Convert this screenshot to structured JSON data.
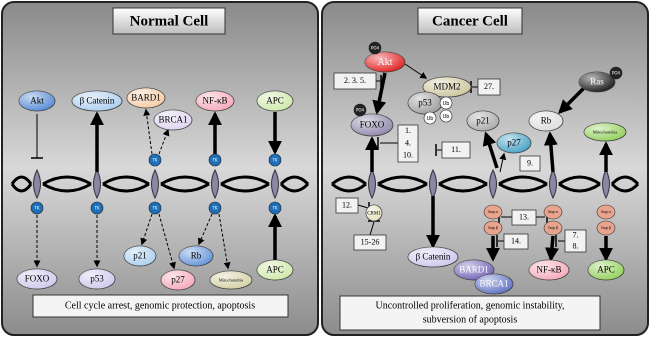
{
  "normal_cell": {
    "title": "Normal Cell",
    "nodes": {
      "akt": "Akt",
      "beta_catenin": "β Catenin",
      "bard1": "BARD1",
      "brca1": "BRCA1",
      "nfkb": "NF-κB",
      "apc_top": "APC",
      "foxo": "FOXO",
      "p53": "p53",
      "p21": "p21",
      "p27": "p27",
      "rb": "Rb",
      "mitochondria": "Mitochondria",
      "apc_bottom": "APC"
    },
    "tk": [
      "TK",
      "TK",
      "TK",
      "TK",
      "TK",
      "TK",
      "TK",
      "TK"
    ],
    "caption": "Cell cycle arrest, genomic protection, apoptosis"
  },
  "cancer_cell": {
    "title": "Cancer Cell",
    "nodes": {
      "akt": "Akt",
      "mdm2": "MDM2",
      "p53": "p53",
      "foxo": "FOXO",
      "p21": "p21",
      "p27": "p27",
      "rb": "Rb",
      "ras": "Ras",
      "mitochondria": "Mitochondria",
      "crm1": "CRM1",
      "beta_catenin": "β Catenin",
      "bard1": "BARD1",
      "brca1": "BRCA1",
      "nfkb": "NF-κB",
      "apc": "APC"
    },
    "phospho": [
      "PO4",
      "PO4",
      "PO4"
    ],
    "ub": [
      "Ub",
      "Ub",
      "Ub"
    ],
    "imp": [
      "Imp α",
      "Imp β",
      "Imp α",
      "Imp β",
      "Imp α",
      "Imp β"
    ],
    "refs": {
      "r235": "2. 3. 5.",
      "r27": "27.",
      "r1410": [
        "1.",
        "4.",
        "10."
      ],
      "r11": "11.",
      "r9": "9.",
      "r12": "12.",
      "r1526": "15-26",
      "r13": "13.",
      "r14": "14.",
      "r78": [
        "7.",
        "8."
      ]
    },
    "caption": [
      "Uncontrolled proliferation, genomic instability,",
      "subversion of apoptosis"
    ]
  }
}
